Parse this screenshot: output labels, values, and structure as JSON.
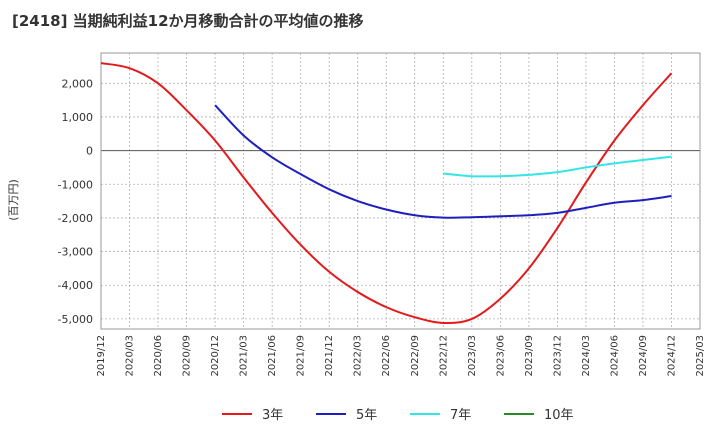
{
  "chart_data": {
    "type": "line",
    "title": "[2418]  当期純利益12か月移動合計の平均値の推移",
    "ylabel": "(百万円)",
    "xlabel": "",
    "ylim": [
      -5300,
      2900
    ],
    "yticks": [
      2000,
      1000,
      0,
      -1000,
      -2000,
      -3000,
      -4000,
      -5000
    ],
    "ytick_labels": [
      "2,000",
      "1,000",
      "0",
      "-1,000",
      "-2,000",
      "-3,000",
      "-4,000",
      "-5,000"
    ],
    "x_tick_labels": [
      "2019/12",
      "2020/03",
      "2020/06",
      "2020/09",
      "2020/12",
      "2021/03",
      "2021/06",
      "2021/09",
      "2021/12",
      "2022/03",
      "2022/06",
      "2022/09",
      "2022/12",
      "2023/03",
      "2023/06",
      "2023/09",
      "2023/12",
      "2024/03",
      "2024/06",
      "2024/09",
      "2024/12",
      "2025/03"
    ],
    "grid": true,
    "legend_position": "bottom",
    "series": [
      {
        "name": "3年",
        "color": "#e31a1c",
        "x": [
          "2019/12",
          "2020/03",
          "2020/06",
          "2020/09",
          "2020/12",
          "2021/03",
          "2021/06",
          "2021/09",
          "2021/12",
          "2022/03",
          "2022/06",
          "2022/09",
          "2022/12",
          "2023/03",
          "2023/06",
          "2023/09",
          "2023/12",
          "2024/03",
          "2024/06",
          "2024/09",
          "2024/12"
        ],
        "values": [
          2600,
          2450,
          2000,
          1200,
          300,
          -800,
          -1850,
          -2800,
          -3600,
          -4200,
          -4650,
          -4950,
          -5120,
          -5000,
          -4400,
          -3500,
          -2300,
          -950,
          300,
          1350,
          2300
        ]
      },
      {
        "name": "5年",
        "color": "#1f1fbf",
        "x": [
          "2020/12",
          "2021/03",
          "2021/06",
          "2021/09",
          "2021/12",
          "2022/03",
          "2022/06",
          "2022/09",
          "2022/12",
          "2023/03",
          "2023/06",
          "2023/09",
          "2023/12",
          "2024/03",
          "2024/06",
          "2024/09",
          "2024/12"
        ],
        "values": [
          1350,
          450,
          -200,
          -700,
          -1150,
          -1500,
          -1750,
          -1920,
          -1990,
          -1980,
          -1950,
          -1920,
          -1850,
          -1700,
          -1550,
          -1470,
          -1350
        ]
      },
      {
        "name": "7年",
        "color": "#33e5e5",
        "x": [
          "2022/12",
          "2023/03",
          "2023/06",
          "2023/09",
          "2023/12",
          "2024/03",
          "2024/06",
          "2024/09",
          "2024/12"
        ],
        "values": [
          -680,
          -760,
          -760,
          -720,
          -640,
          -500,
          -380,
          -280,
          -180
        ]
      },
      {
        "name": "10年",
        "color": "#2a8a2a",
        "x": [],
        "values": []
      }
    ]
  }
}
